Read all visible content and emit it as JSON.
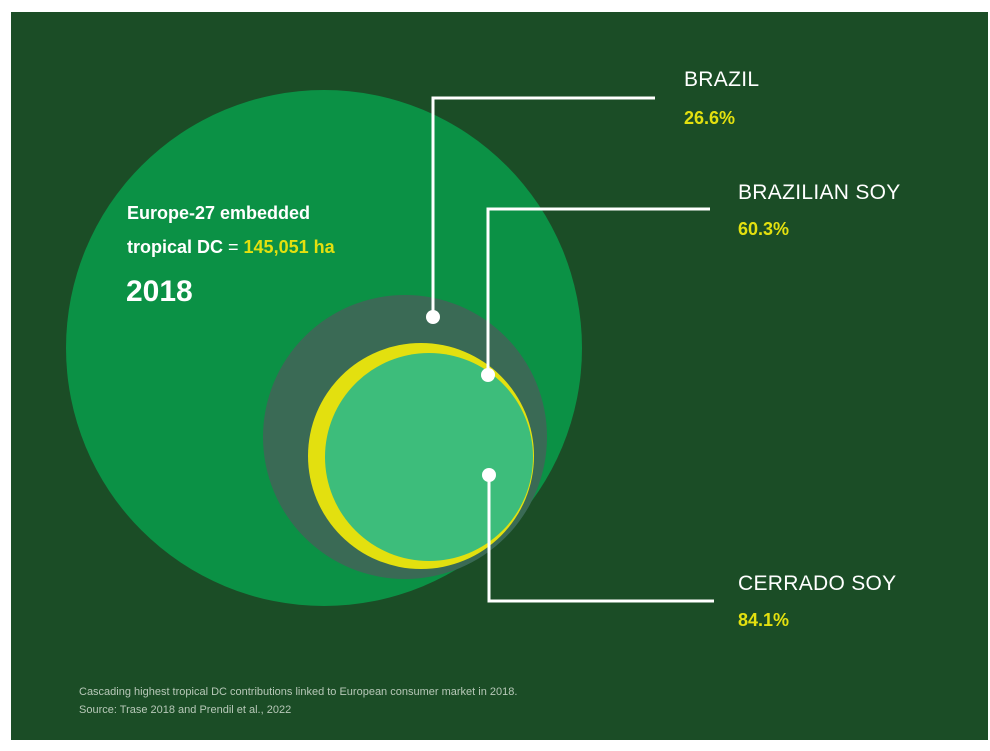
{
  "headline": {
    "line1": "Europe-27 embedded",
    "line2_start": "tropical DC",
    "line2_eq": " = ",
    "line2_value": "145,051 ha",
    "year": "2018"
  },
  "labels": [
    {
      "name": "BRAZIL",
      "percent": "26.6%"
    },
    {
      "name": "BRAZILIAN SOY",
      "percent": "60.3%"
    },
    {
      "name": "CERRADO SOY",
      "percent": "84.1%"
    }
  ],
  "caption": {
    "line1": "Cascading highest tropical DC contributions linked to European consumer market in 2018.",
    "line2": "Source: Trase 2018 and Prendil et al., 2022"
  },
  "colors": {
    "background": "#1b4d26",
    "outer_circle": "#0b9145",
    "brazil_circle": "#3a6a55",
    "brazilian_soy_circle": "#e3e00f",
    "cerrado_soy_circle": "#3dbd7b",
    "accent_text": "#e3e00f"
  }
}
